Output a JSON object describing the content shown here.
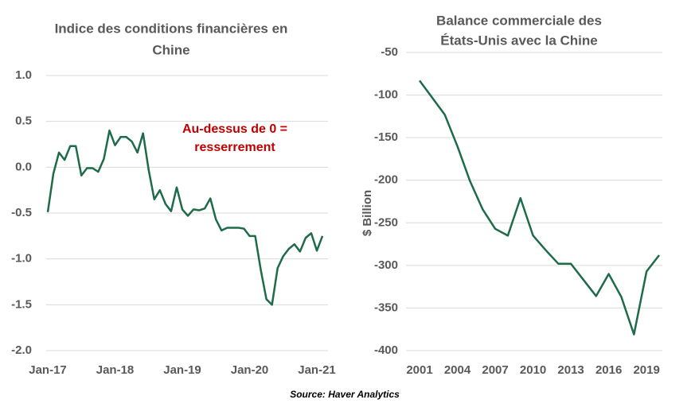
{
  "chart_data": [
    {
      "type": "line",
      "title": [
        "Indice des conditions financières en",
        "Chine"
      ],
      "annotation": [
        "Au-dessus de 0 =",
        "resserrement"
      ],
      "categories": [
        "Jan-17",
        null,
        null,
        null,
        null,
        null,
        null,
        null,
        null,
        null,
        null,
        null,
        "Jan-18",
        null,
        null,
        null,
        null,
        null,
        null,
        null,
        null,
        null,
        null,
        null,
        "Jan-19",
        null,
        null,
        null,
        null,
        null,
        null,
        null,
        null,
        null,
        null,
        null,
        "Jan-20",
        null,
        null,
        null,
        null,
        null,
        null,
        null,
        null,
        null,
        null,
        null,
        "Jan-21",
        null
      ],
      "series": [
        {
          "name": null,
          "color": "#1e6b4a",
          "values": [
            -0.49,
            -0.07,
            0.16,
            0.08,
            0.23,
            0.23,
            -0.09,
            -0.01,
            -0.01,
            -0.05,
            0.09,
            0.4,
            0.24,
            0.33,
            0.33,
            0.28,
            0.16,
            0.37,
            -0.03,
            -0.35,
            -0.25,
            -0.4,
            -0.48,
            -0.22,
            -0.46,
            -0.53,
            -0.46,
            -0.47,
            -0.45,
            -0.34,
            -0.57,
            -0.69,
            -0.66,
            -0.66,
            -0.66,
            -0.67,
            -0.75,
            -0.75,
            -1.12,
            -1.44,
            -1.5,
            -1.1,
            -0.97,
            -0.89,
            -0.84,
            -0.92,
            -0.77,
            -0.72,
            -0.91,
            -0.75
          ]
        }
      ],
      "ylim": [
        -2,
        1
      ],
      "yticks": [
        {
          "value": 1,
          "label": "1.0"
        },
        0.5,
        {
          "value": 0,
          "label": "0.0"
        },
        -0.5,
        {
          "value": -1,
          "label": "-1.0"
        },
        -1.5,
        {
          "value": -2,
          "label": "-2.0"
        }
      ],
      "grid": true
    },
    {
      "type": "line",
      "title": [
        "Balance commerciale des",
        "États-Unis  avec la Chine"
      ],
      "y_label": "$ Billion",
      "x": [
        2001,
        2002,
        2003,
        2004,
        2005,
        2006,
        2007,
        2008,
        2009,
        2010,
        2011,
        2012,
        2013,
        2014,
        2015,
        2016,
        2017,
        2018,
        2019,
        2020
      ],
      "series": [
        {
          "name": null,
          "color": "#1e6b4a",
          "values": [
            -83,
            -103,
            -123,
            -160,
            -201,
            -234,
            -257,
            -265,
            -221,
            -265,
            -282,
            -298,
            -298,
            -317,
            -336,
            -310,
            -337,
            -381,
            -307,
            -288
          ]
        }
      ],
      "xlim": [
        2001,
        2020
      ],
      "xticks": [
        2001,
        2004,
        2007,
        2010,
        2013,
        2016,
        2019
      ],
      "ylim": [
        -400,
        -50
      ],
      "yticks": [
        -50,
        -100,
        -150,
        -200,
        -250,
        -300,
        -350,
        -400
      ],
      "grid": true
    }
  ],
  "source": "Source: Haver Analytics"
}
